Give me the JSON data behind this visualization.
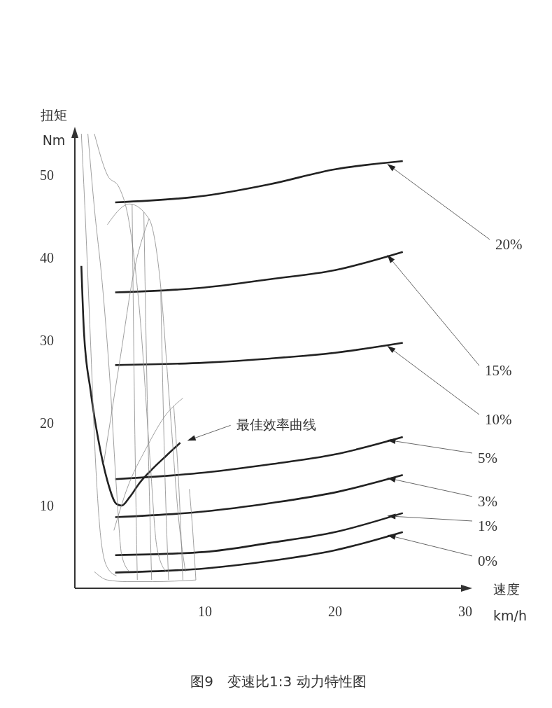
{
  "chart_data": {
    "type": "line",
    "title": "图9　变速比1:3 动力特性图",
    "xlabel": "速度 km/h",
    "ylabel": "扭矩 Nm",
    "xlim": [
      0,
      30
    ],
    "xticks": [
      10,
      20,
      30
    ],
    "ylim": [
      0,
      55
    ],
    "yticks": [
      10,
      20,
      30,
      40,
      50
    ],
    "marker": "none",
    "line_style": "solid",
    "annotations": [
      "最佳效率曲线"
    ],
    "series": [
      {
        "name": "20%",
        "color": "#222222",
        "x": [
          3.1,
          10,
          15,
          20,
          25.2
        ],
        "values": [
          46.7,
          47.5,
          48.9,
          50.7,
          51.7
        ]
      },
      {
        "name": "15%",
        "color": "#222222",
        "x": [
          3.1,
          10,
          15,
          20,
          25.2
        ],
        "values": [
          35.8,
          36.4,
          37.4,
          38.5,
          40.7
        ]
      },
      {
        "name": "10%",
        "color": "#222222",
        "x": [
          3.1,
          10,
          15,
          20,
          25.2
        ],
        "values": [
          27.0,
          27.3,
          27.8,
          28.5,
          29.7
        ]
      },
      {
        "name": "5%",
        "color": "#222222",
        "x": [
          3.1,
          10,
          15,
          20,
          25.2
        ],
        "values": [
          13.2,
          14.0,
          15.0,
          16.2,
          18.3
        ]
      },
      {
        "name": "3%",
        "color": "#222222",
        "x": [
          3.1,
          10,
          15,
          20,
          25.2
        ],
        "values": [
          8.6,
          9.3,
          10.3,
          11.6,
          13.7
        ]
      },
      {
        "name": "1%",
        "color": "#222222",
        "x": [
          3.1,
          10,
          15,
          20,
          25.2
        ],
        "values": [
          4.0,
          4.4,
          5.5,
          6.8,
          9.1
        ]
      },
      {
        "name": "0%",
        "color": "#222222",
        "x": [
          3.1,
          10,
          15,
          20,
          25.2
        ],
        "values": [
          1.9,
          2.4,
          3.3,
          4.6,
          6.8
        ]
      },
      {
        "color": "#222222",
        "x": [
          0.5,
          0.7,
          1.2,
          1.8,
          2.5,
          3.2,
          3.6,
          4.2,
          5,
          6,
          7,
          8.1
        ],
        "values": [
          39,
          31,
          24,
          18,
          13,
          10.2,
          10,
          11,
          12.8,
          14.5,
          16,
          17.6
        ]
      },
      {
        "color": "#888888",
        "x": [
          0.5,
          0.8,
          1.2,
          1.6,
          2.0,
          2.5,
          3.2
        ],
        "values": [
          55,
          45,
          30,
          15,
          6,
          2.5,
          1.5
        ]
      },
      {
        "color": "#888888",
        "x": [
          1.0,
          1.5,
          2.1,
          2.7,
          3.2,
          3.6,
          4.2
        ],
        "values": [
          55,
          46,
          37,
          25,
          12,
          4,
          2
        ]
      },
      {
        "color": "#888888",
        "x": [
          1.5,
          2.5,
          3.4,
          4.2,
          5.0,
          5.8,
          6.3,
          7.0
        ],
        "values": [
          55,
          50,
          48.5,
          44,
          33,
          15,
          5,
          2
        ]
      },
      {
        "color": "#888888",
        "x": [
          2.5,
          4.2,
          5.7,
          6.5,
          7.3,
          8.0,
          8.5
        ],
        "values": [
          44,
          46.5,
          44.7,
          38,
          22,
          8,
          2
        ]
      },
      {
        "color": "#888888",
        "x": [
          1.5,
          2.5,
          4,
          6,
          9.3
        ],
        "values": [
          2,
          1,
          0.8,
          0.8,
          1
        ]
      },
      {
        "color": "#888888",
        "x": [
          3,
          4,
          5.5,
          7,
          8.3
        ],
        "values": [
          7,
          12,
          17,
          21,
          23
        ]
      },
      {
        "color": "#888888",
        "x": [
          2.2,
          3.5,
          4.5,
          5.7
        ],
        "values": [
          15,
          28,
          38,
          44.7
        ]
      },
      {
        "color": "#888888",
        "x": [
          4.4,
          4.6,
          4.8
        ],
        "values": [
          46.5,
          20,
          1
        ]
      },
      {
        "color": "#888888",
        "x": [
          5.3,
          5.6,
          5.9
        ],
        "values": [
          45.5,
          20,
          1
        ]
      },
      {
        "color": "#888888",
        "x": [
          6.6,
          6.9,
          7.2
        ],
        "values": [
          36,
          15,
          1
        ]
      },
      {
        "color": "#888888",
        "x": [
          7.6,
          8.0,
          8.3
        ],
        "values": [
          22,
          12,
          1
        ]
      },
      {
        "color": "#888888",
        "x": [
          8.8,
          9.1,
          9.3
        ],
        "values": [
          12,
          6,
          1
        ]
      }
    ]
  }
}
